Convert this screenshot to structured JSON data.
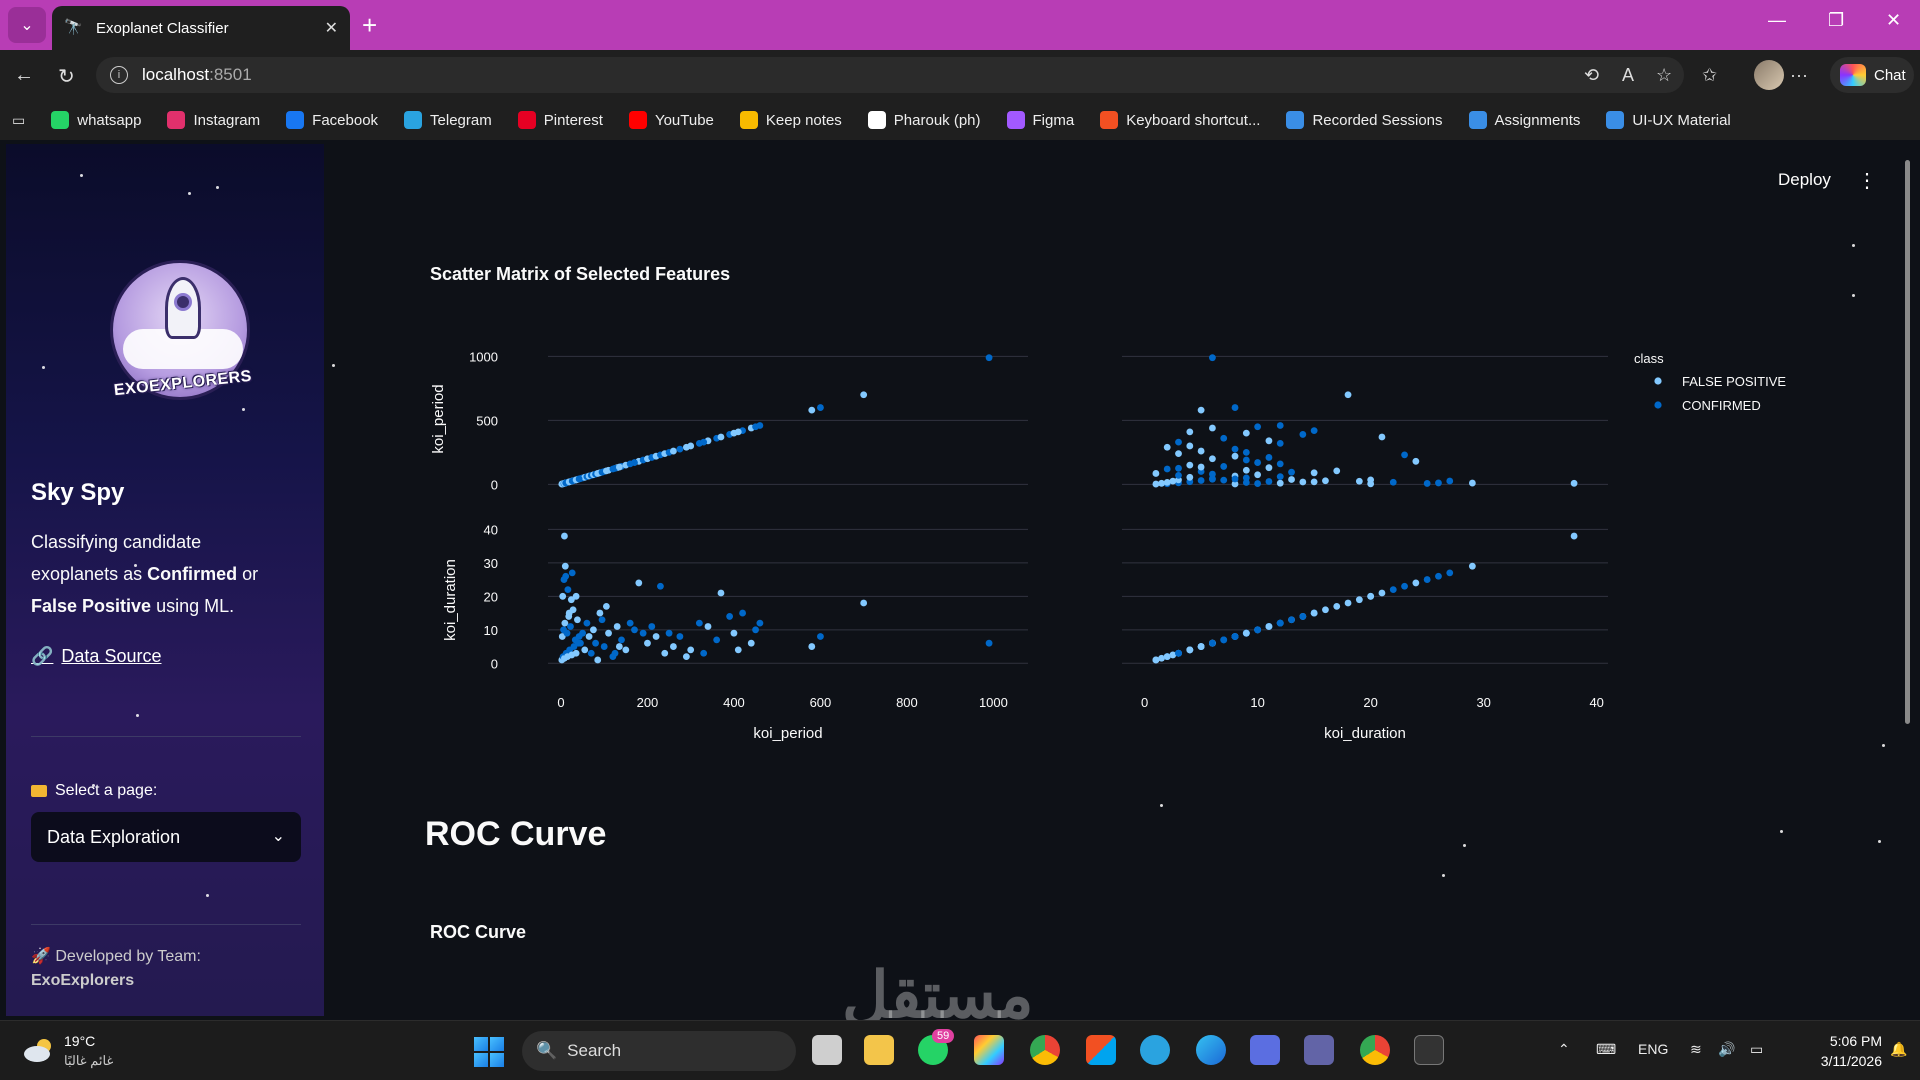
{
  "browser": {
    "tab_title": "Exoplanet Classifier",
    "url_host": "localhost",
    "url_port": ":8501",
    "chat_label": "Chat"
  },
  "bookmarks": [
    {
      "label": "whatsapp",
      "color": "#25d366",
      "icon": "whatsapp-icon"
    },
    {
      "label": "Instagram",
      "color": "#e1306c",
      "icon": "instagram-icon"
    },
    {
      "label": "Facebook",
      "color": "#1877f2",
      "icon": "facebook-icon"
    },
    {
      "label": "Telegram",
      "color": "#2aa3e0",
      "icon": "telegram-icon"
    },
    {
      "label": "Pinterest",
      "color": "#e60023",
      "icon": "pinterest-icon"
    },
    {
      "label": "YouTube",
      "color": "#ff0000",
      "icon": "youtube-icon"
    },
    {
      "label": "Keep notes",
      "color": "#f9bb00",
      "icon": "keep-icon"
    },
    {
      "label": "Pharouk (ph)",
      "color": "#ffffff",
      "icon": "page-icon"
    },
    {
      "label": "Figma",
      "color": "#a259ff",
      "icon": "figma-icon"
    },
    {
      "label": "Keyboard shortcut...",
      "color": "#f25022",
      "icon": "microsoft-icon"
    },
    {
      "label": "Recorded Sessions",
      "color": "#3a8ee6",
      "icon": "onedrive-icon"
    },
    {
      "label": "Assignments",
      "color": "#3a8ee6",
      "icon": "onedrive-icon"
    },
    {
      "label": "UI-UX Material",
      "color": "#3a8ee6",
      "icon": "onedrive-icon"
    }
  ],
  "sidebar": {
    "logo_text": "EXOEXPLORERS",
    "title": "Sky Spy",
    "desc_1": "Classifying candidate exoplanets as ",
    "desc_bold_1": "Confirmed",
    "desc_2": " or ",
    "desc_bold_2": "False Positive",
    "desc_3": " using ML.",
    "data_source": "Data Source",
    "select_label": "Select a page:",
    "select_value": "Data Exploration",
    "team_label": "Developed by Team:",
    "team_name": "ExoExplorers"
  },
  "header": {
    "deploy": "Deploy"
  },
  "main": {
    "scatter_title": "Scatter Matrix of Selected Features",
    "roc_heading": "ROC Curve",
    "roc_subtitle": "ROC Curve"
  },
  "chart_data": {
    "type": "scatter",
    "title": "Scatter Matrix of Selected Features",
    "dimensions": [
      "koi_period",
      "koi_duration"
    ],
    "legend_title": "class",
    "legend_position": "top-right",
    "series": [
      {
        "name": "FALSE POSITIVE",
        "color": "#83c9ff"
      },
      {
        "name": "CONFIRMED",
        "color": "#0068c9"
      }
    ],
    "ranges": {
      "koi_period": [
        -30,
        1080
      ],
      "koi_duration": [
        -2,
        41
      ]
    },
    "ticks": {
      "koi_period": [
        0,
        200,
        400,
        600,
        800,
        1000
      ],
      "koi_duration": [
        0,
        10,
        20,
        30,
        40
      ],
      "koi_period_y": [
        0,
        500,
        1000
      ]
    },
    "grid": true,
    "points": [
      [
        2,
        1,
        0
      ],
      [
        5,
        2,
        1
      ],
      [
        8,
        1.5,
        0
      ],
      [
        12,
        3,
        1
      ],
      [
        15,
        2,
        0
      ],
      [
        20,
        4,
        1
      ],
      [
        25,
        2.5,
        0
      ],
      [
        30,
        5,
        1
      ],
      [
        35,
        3,
        0
      ],
      [
        40,
        6,
        1
      ],
      [
        3,
        8,
        0
      ],
      [
        6,
        10,
        1
      ],
      [
        9,
        12,
        0
      ],
      [
        14,
        9,
        1
      ],
      [
        18,
        14,
        0
      ],
      [
        22,
        11,
        1
      ],
      [
        28,
        16,
        0
      ],
      [
        33,
        7,
        1
      ],
      [
        38,
        13,
        0
      ],
      [
        45,
        6,
        1
      ],
      [
        4,
        20,
        0
      ],
      [
        7,
        25,
        1
      ],
      [
        10,
        29,
        0
      ],
      [
        16,
        22,
        1
      ],
      [
        24,
        19,
        0
      ],
      [
        50,
        9,
        1
      ],
      [
        55,
        4,
        0
      ],
      [
        60,
        12,
        1
      ],
      [
        65,
        8,
        0
      ],
      [
        70,
        3,
        1
      ],
      [
        75,
        10,
        0
      ],
      [
        80,
        6,
        1
      ],
      [
        90,
        15,
        0
      ],
      [
        100,
        5,
        1
      ],
      [
        110,
        9,
        0
      ],
      [
        120,
        2,
        1
      ],
      [
        130,
        11,
        0
      ],
      [
        140,
        7,
        1
      ],
      [
        150,
        4,
        0
      ],
      [
        160,
        12,
        1
      ],
      [
        180,
        24,
        0
      ],
      [
        190,
        9,
        1
      ],
      [
        200,
        6,
        0
      ],
      [
        210,
        11,
        1
      ],
      [
        220,
        8,
        0
      ],
      [
        230,
        23,
        1
      ],
      [
        240,
        3,
        0
      ],
      [
        250,
        9,
        1
      ],
      [
        260,
        5,
        0
      ],
      [
        275,
        8,
        1
      ],
      [
        300,
        4,
        0
      ],
      [
        320,
        12,
        1
      ],
      [
        340,
        11,
        0
      ],
      [
        360,
        7,
        1
      ],
      [
        370,
        21,
        0
      ],
      [
        390,
        14,
        1
      ],
      [
        400,
        9,
        0
      ],
      [
        420,
        15,
        1
      ],
      [
        440,
        6,
        0
      ],
      [
        460,
        12,
        1
      ],
      [
        580,
        5,
        0
      ],
      [
        600,
        8,
        1
      ],
      [
        700,
        18,
        0
      ],
      [
        990,
        6,
        1
      ],
      [
        8,
        38,
        0
      ],
      [
        11,
        26,
        1
      ],
      [
        19,
        15,
        0
      ],
      [
        26,
        27,
        1
      ],
      [
        35,
        20,
        0
      ],
      [
        42,
        8,
        1
      ],
      [
        85,
        1,
        0
      ],
      [
        95,
        13,
        1
      ],
      [
        105,
        17,
        0
      ],
      [
        125,
        3,
        1
      ],
      [
        135,
        5,
        0
      ],
      [
        170,
        10,
        1
      ],
      [
        290,
        2,
        0
      ],
      [
        330,
        3,
        1
      ],
      [
        410,
        4,
        0
      ],
      [
        450,
        10,
        1
      ]
    ]
  }
}
